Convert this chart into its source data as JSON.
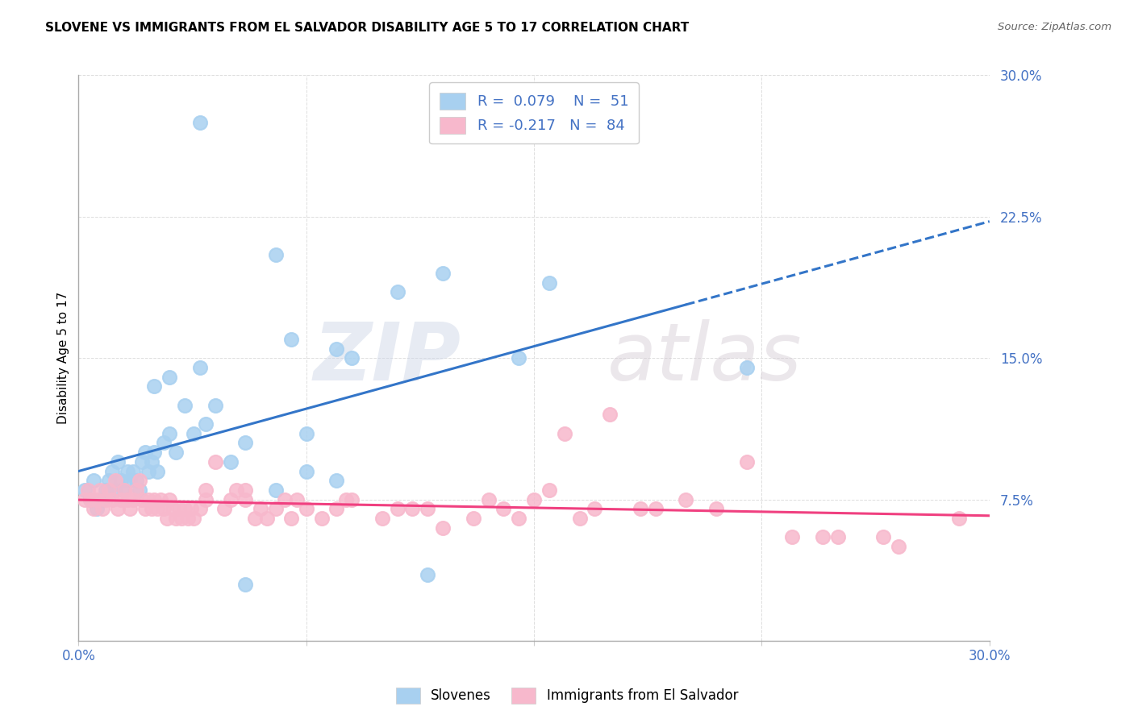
{
  "title": "SLOVENE VS IMMIGRANTS FROM EL SALVADOR DISABILITY AGE 5 TO 17 CORRELATION CHART",
  "source": "Source: ZipAtlas.com",
  "ylabel": "Disability Age 5 to 17",
  "legend_label1": "Slovenes",
  "legend_label2": "Immigrants from El Salvador",
  "R1": 0.079,
  "N1": 51,
  "R2": -0.217,
  "N2": 84,
  "color_blue": "#a8d0f0",
  "color_pink": "#f7b8cc",
  "line_color_blue": "#3375c8",
  "line_color_pink": "#f04080",
  "watermark_zip": "ZIP",
  "watermark_atlas": "atlas",
  "xlim": [
    0.0,
    30.0
  ],
  "ylim": [
    0.0,
    30.0
  ],
  "ytick_values": [
    7.5,
    15.0,
    22.5,
    30.0
  ],
  "ytick_labels": [
    "7.5%",
    "15.0%",
    "22.5%",
    "30.0%"
  ],
  "slovene_x": [
    0.2,
    0.4,
    0.5,
    0.6,
    0.8,
    0.9,
    1.0,
    1.1,
    1.2,
    1.3,
    1.4,
    1.5,
    1.6,
    1.7,
    1.8,
    1.9,
    2.0,
    2.1,
    2.2,
    2.3,
    2.4,
    2.5,
    2.6,
    2.8,
    3.0,
    3.2,
    3.5,
    3.8,
    4.0,
    4.2,
    4.5,
    5.0,
    5.5,
    5.5,
    6.5,
    7.0,
    7.5,
    8.5,
    10.5,
    11.5,
    12.0,
    14.5,
    15.5,
    22.0,
    4.0,
    9.0,
    6.5,
    7.5,
    2.5,
    3.0,
    8.5
  ],
  "slovene_y": [
    8.0,
    7.5,
    8.5,
    7.0,
    7.5,
    8.0,
    8.5,
    9.0,
    8.0,
    9.5,
    8.5,
    8.0,
    9.0,
    8.5,
    9.0,
    8.5,
    8.0,
    9.5,
    10.0,
    9.0,
    9.5,
    10.0,
    9.0,
    10.5,
    11.0,
    10.0,
    12.5,
    11.0,
    14.5,
    11.5,
    12.5,
    9.5,
    10.5,
    3.0,
    20.5,
    16.0,
    11.0,
    15.5,
    18.5,
    3.5,
    19.5,
    15.0,
    19.0,
    14.5,
    27.5,
    15.0,
    8.0,
    9.0,
    13.5,
    14.0,
    8.5
  ],
  "elsalvador_x": [
    0.2,
    0.3,
    0.4,
    0.5,
    0.6,
    0.7,
    0.8,
    0.9,
    1.0,
    1.1,
    1.2,
    1.3,
    1.4,
    1.5,
    1.6,
    1.7,
    1.8,
    1.9,
    2.0,
    2.1,
    2.2,
    2.3,
    2.4,
    2.5,
    2.6,
    2.7,
    2.8,
    2.9,
    3.0,
    3.1,
    3.2,
    3.3,
    3.4,
    3.5,
    3.6,
    3.7,
    3.8,
    4.0,
    4.2,
    4.5,
    4.8,
    5.0,
    5.2,
    5.5,
    5.8,
    6.0,
    6.2,
    6.5,
    7.0,
    7.5,
    8.0,
    8.5,
    9.0,
    10.0,
    11.0,
    12.0,
    13.0,
    14.0,
    15.0,
    16.0,
    17.5,
    19.0,
    20.0,
    22.0,
    23.5,
    25.0,
    27.0,
    29.0,
    15.5,
    10.5,
    6.8,
    4.2,
    5.5,
    7.2,
    8.8,
    11.5,
    13.5,
    16.5,
    18.5,
    21.0,
    24.5,
    26.5,
    14.5,
    17.0
  ],
  "elsalvador_y": [
    7.5,
    8.0,
    7.5,
    7.0,
    7.5,
    8.0,
    7.0,
    7.5,
    8.0,
    7.5,
    8.5,
    7.0,
    7.5,
    8.0,
    7.5,
    7.0,
    7.5,
    8.0,
    8.5,
    7.5,
    7.0,
    7.5,
    7.0,
    7.5,
    7.0,
    7.5,
    7.0,
    6.5,
    7.5,
    7.0,
    6.5,
    7.0,
    6.5,
    7.0,
    6.5,
    7.0,
    6.5,
    7.0,
    8.0,
    9.5,
    7.0,
    7.5,
    8.0,
    7.5,
    6.5,
    7.0,
    6.5,
    7.0,
    6.5,
    7.0,
    6.5,
    7.0,
    7.5,
    6.5,
    7.0,
    6.0,
    6.5,
    7.0,
    7.5,
    11.0,
    12.0,
    7.0,
    7.5,
    9.5,
    5.5,
    5.5,
    5.0,
    6.5,
    8.0,
    7.0,
    7.5,
    7.5,
    8.0,
    7.5,
    7.5,
    7.0,
    7.5,
    6.5,
    7.0,
    7.0,
    5.5,
    5.5,
    6.5,
    7.0
  ]
}
